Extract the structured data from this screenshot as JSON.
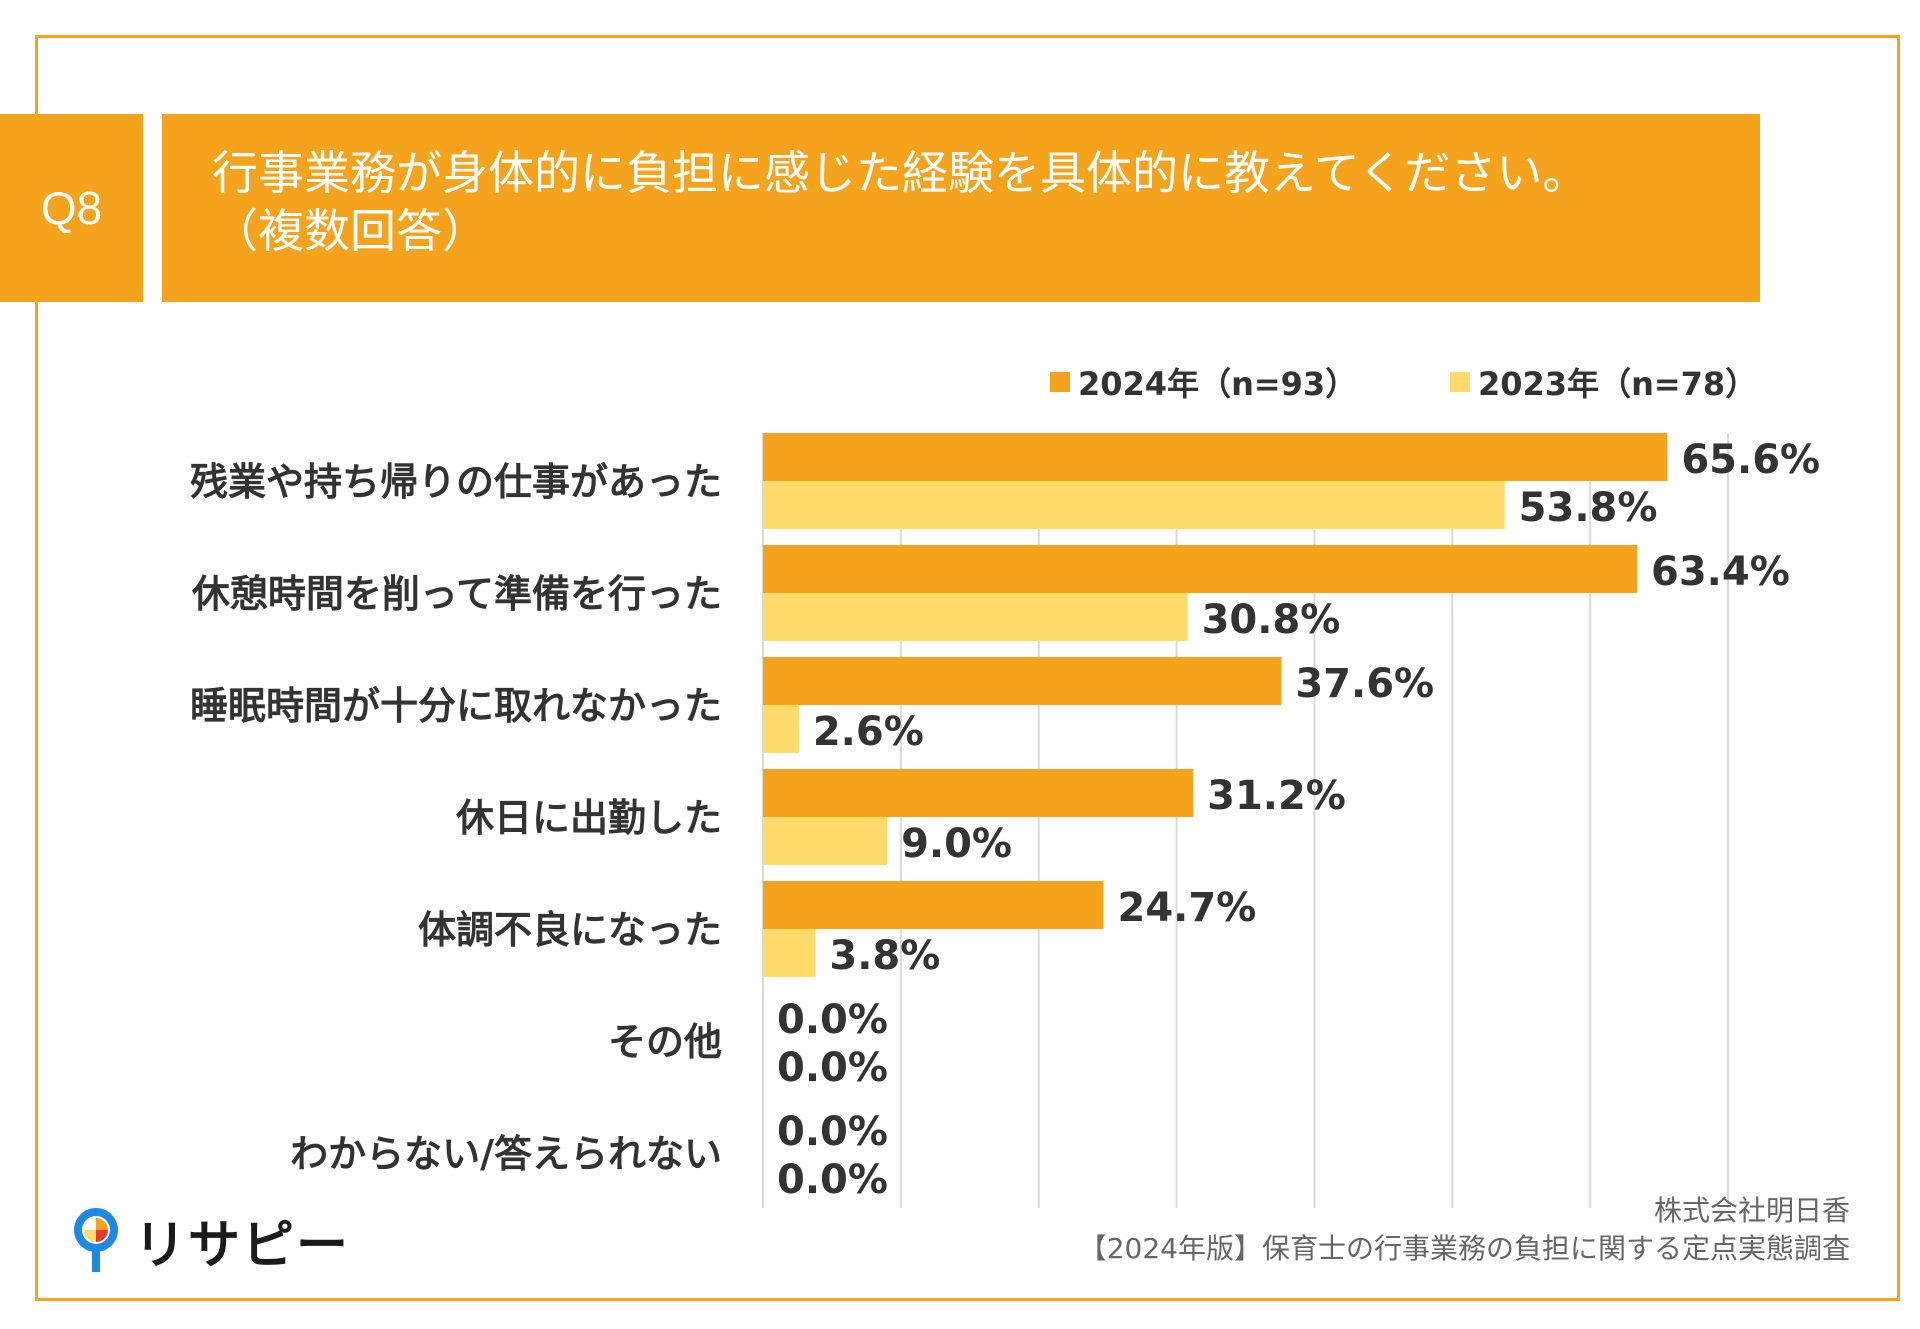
{
  "question": {
    "badge": "Q8",
    "title_line1": "行事業務が身体的に負担に感じた経験を具体的に教えてください。",
    "title_line2": "（複数回答）"
  },
  "colors": {
    "accent": "#F5A21D",
    "series_2024": "#F5A21D",
    "series_2023": "#FFDB6C",
    "grid": "#D9D9D9"
  },
  "chart_data": {
    "type": "bar",
    "orientation": "horizontal",
    "categories": [
      "残業や持ち帰りの仕事があった",
      "休憩時間を削って準備を行った",
      "睡眠時間が十分に取れなかった",
      "休日に出勤した",
      "体調不良になった",
      "その他",
      "わからない/答えられない"
    ],
    "series": [
      {
        "name": "2024年（n=93）",
        "values": [
          65.6,
          63.4,
          37.6,
          31.2,
          24.7,
          0.0,
          0.0
        ],
        "labels": [
          "65.6%",
          "63.4%",
          "37.6%",
          "31.2%",
          "24.7%",
          "0.0%",
          "0.0%"
        ]
      },
      {
        "name": "2023年（n=78）",
        "values": [
          53.8,
          30.8,
          2.6,
          9.0,
          3.8,
          0.0,
          0.0
        ],
        "labels": [
          "53.8%",
          "30.8%",
          "2.6%",
          "9.0%",
          "3.8%",
          "0.0%",
          "0.0%"
        ]
      }
    ],
    "xlim": [
      0,
      70
    ],
    "grid_step": 10,
    "grid": true,
    "legend_position": "top-right"
  },
  "logo": {
    "text": "リサピー"
  },
  "footer": {
    "company": "株式会社明日香",
    "survey": "【2024年版】保育士の行事業務の負担に関する定点実態調査"
  }
}
